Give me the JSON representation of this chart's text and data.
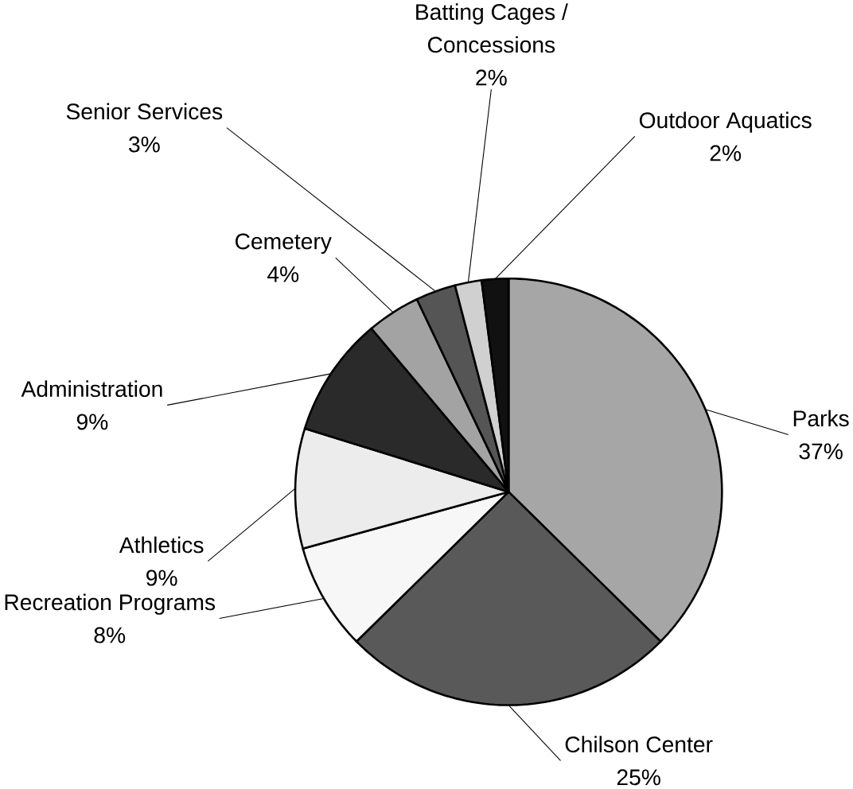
{
  "chart_data": {
    "type": "pie",
    "categories": [
      "Parks",
      "Chilson Center",
      "Recreation Programs",
      "Athletics",
      "Administration",
      "Cemetery",
      "Senior Services",
      "Batting Cages / Concessions",
      "Outdoor Aquatics"
    ],
    "values": [
      37,
      25,
      8,
      9,
      9,
      4,
      3,
      2,
      2
    ],
    "value_labels": [
      "37%",
      "25%",
      "8%",
      "9%",
      "9%",
      "4%",
      "3%",
      "2%",
      "2%"
    ],
    "colors": [
      "#a6a6a6",
      "#595959",
      "#f7f7f7",
      "#ececec",
      "#2a2a2a",
      "#a3a3a3",
      "#555555",
      "#d0d0d0",
      "#111111"
    ],
    "legend": false
  }
}
